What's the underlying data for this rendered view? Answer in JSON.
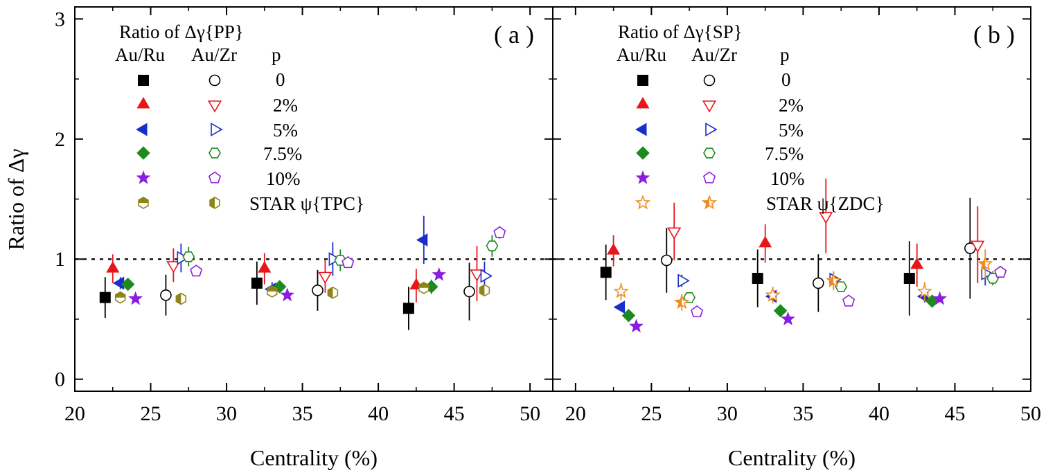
{
  "chart_data": [
    {
      "type": "scatter",
      "panel_label": "( a )",
      "legend_title": "Ratio of Δγ{PP}",
      "legend_headers": [
        "Au/Ru",
        "Au/Zr",
        "p"
      ],
      "legend_rows": [
        "0",
        "2%",
        "5%",
        "7.5%",
        "10%",
        "STAR ψ{TPC}"
      ],
      "xlabel": "Centrality (%)",
      "ylabel": "Ratio of Δγ",
      "xlim": [
        20,
        51.5
      ],
      "ylim": [
        -0.1,
        3.1
      ],
      "x_ticks": [
        "20",
        "25",
        "30",
        "35",
        "40",
        "45",
        "50"
      ],
      "y_ticks": [
        "0",
        "1",
        "2",
        "3"
      ],
      "reference_line": 1,
      "series": [
        {
          "name": "Au/Ru p=0",
          "marker": "square",
          "color": "#000000",
          "filled": true,
          "points": [
            {
              "x": 22,
              "y": 0.68,
              "err": 0.17
            },
            {
              "x": 32,
              "y": 0.8,
              "err": 0.18
            },
            {
              "x": 42,
              "y": 0.59,
              "err": 0.18
            }
          ]
        },
        {
          "name": "Au/Zr p=0",
          "marker": "circle",
          "color": "#000000",
          "filled": false,
          "points": [
            {
              "x": 26,
              "y": 0.7,
              "err": 0.17
            },
            {
              "x": 36,
              "y": 0.74,
              "err": 0.17
            },
            {
              "x": 46,
              "y": 0.73,
              "err": 0.24
            }
          ]
        },
        {
          "name": "Au/Ru p=2%",
          "marker": "triangle-up",
          "color": "#e8161b",
          "filled": true,
          "points": [
            {
              "x": 22.5,
              "y": 0.92,
              "err": 0.12
            },
            {
              "x": 32.5,
              "y": 0.92,
              "err": 0.13
            },
            {
              "x": 42.5,
              "y": 0.78,
              "err": 0.14
            }
          ]
        },
        {
          "name": "Au/Zr p=2%",
          "marker": "triangle-down",
          "color": "#e8161b",
          "filled": false,
          "points": [
            {
              "x": 26.5,
              "y": 0.95,
              "err": 0.14
            },
            {
              "x": 36.5,
              "y": 0.86,
              "err": 0.14
            },
            {
              "x": 46.5,
              "y": 0.88,
              "err": 0.23
            }
          ]
        },
        {
          "name": "Au/Ru p=5%",
          "marker": "triangle-left",
          "color": "#1a2fc9",
          "filled": true,
          "points": [
            {
              "x": 23,
              "y": 0.8,
              "err": 0.05
            },
            {
              "x": 33,
              "y": 0.75,
              "err": 0.06
            },
            {
              "x": 43,
              "y": 1.16,
              "err": 0.2
            }
          ]
        },
        {
          "name": "Au/Zr p=5%",
          "marker": "triangle-right",
          "color": "#1a2fc9",
          "filled": false,
          "points": [
            {
              "x": 27,
              "y": 1.01,
              "err": 0.12
            },
            {
              "x": 37,
              "y": 1.0,
              "err": 0.14
            },
            {
              "x": 47,
              "y": 0.86,
              "err": 0.12
            }
          ]
        },
        {
          "name": "Au/Ru p=7.5%",
          "marker": "diamond",
          "color": "#1d8a1d",
          "filled": true,
          "points": [
            {
              "x": 23.5,
              "y": 0.79,
              "err": 0.03
            },
            {
              "x": 33.5,
              "y": 0.77,
              "err": 0.04
            },
            {
              "x": 43.5,
              "y": 0.77,
              "err": 0.06
            }
          ]
        },
        {
          "name": "Au/Zr p=7.5%",
          "marker": "hexagon",
          "color": "#1d8a1d",
          "filled": false,
          "points": [
            {
              "x": 27.5,
              "y": 1.02,
              "err": 0.08
            },
            {
              "x": 37.5,
              "y": 0.99,
              "err": 0.09
            },
            {
              "x": 47.5,
              "y": 1.11,
              "err": 0.09
            }
          ]
        },
        {
          "name": "Au/Ru p=10%",
          "marker": "star",
          "color": "#8a1ee0",
          "filled": true,
          "points": [
            {
              "x": 24,
              "y": 0.67,
              "err": 0.02
            },
            {
              "x": 34,
              "y": 0.7,
              "err": 0.02
            },
            {
              "x": 44,
              "y": 0.87,
              "err": 0.03
            }
          ]
        },
        {
          "name": "Au/Zr p=10%",
          "marker": "pentagon",
          "color": "#8a1ee0",
          "filled": false,
          "points": [
            {
              "x": 28,
              "y": 0.9,
              "err": 0.03
            },
            {
              "x": 38,
              "y": 0.97,
              "err": 0.03
            },
            {
              "x": 48,
              "y": 1.22,
              "err": 0.05
            }
          ]
        },
        {
          "name": "STAR ψ{TPC} Au/Ru",
          "marker": "hexagon-half-top",
          "color": "#8f8418",
          "filled": true,
          "points": [
            {
              "x": 23,
              "y": 0.68,
              "err": 0.02
            },
            {
              "x": 33,
              "y": 0.73,
              "err": 0.02
            },
            {
              "x": 43,
              "y": 0.76,
              "err": 0.02
            }
          ]
        },
        {
          "name": "STAR ψ{TPC} Au/Zr",
          "marker": "hexagon-half-left",
          "color": "#8f8418",
          "filled": true,
          "points": [
            {
              "x": 27,
              "y": 0.67,
              "err": 0.02
            },
            {
              "x": 37,
              "y": 0.72,
              "err": 0.02
            },
            {
              "x": 47,
              "y": 0.74,
              "err": 0.02
            }
          ]
        }
      ]
    },
    {
      "type": "scatter",
      "panel_label": "( b )",
      "legend_title": "Ratio of Δγ{SP}",
      "legend_headers": [
        "Au/Ru",
        "Au/Zr",
        "p"
      ],
      "legend_rows": [
        "0",
        "2%",
        "5%",
        "7.5%",
        "10%",
        "STAR ψ{ZDC}"
      ],
      "xlabel": "Centrality (%)",
      "ylabel": "",
      "xlim": [
        18.5,
        50
      ],
      "ylim": [
        -0.1,
        3.1
      ],
      "x_ticks": [
        "20",
        "25",
        "30",
        "35",
        "40",
        "45",
        "50"
      ],
      "y_ticks": [
        "0",
        "1",
        "2",
        "3"
      ],
      "reference_line": 1,
      "series": [
        {
          "name": "Au/Ru p=0",
          "marker": "square",
          "color": "#000000",
          "filled": true,
          "points": [
            {
              "x": 22,
              "y": 0.89,
              "err": 0.23
            },
            {
              "x": 32,
              "y": 0.84,
              "err": 0.24
            },
            {
              "x": 42,
              "y": 0.84,
              "err": 0.31
            }
          ]
        },
        {
          "name": "Au/Zr p=0",
          "marker": "circle",
          "color": "#000000",
          "filled": false,
          "points": [
            {
              "x": 26,
              "y": 0.99,
              "err": 0.27
            },
            {
              "x": 36,
              "y": 0.8,
              "err": 0.24
            },
            {
              "x": 46,
              "y": 1.09,
              "err": 0.42
            }
          ]
        },
        {
          "name": "Au/Ru p=2%",
          "marker": "triangle-up",
          "color": "#e8161b",
          "filled": true,
          "points": [
            {
              "x": 22.5,
              "y": 1.07,
              "err": 0.13
            },
            {
              "x": 32.5,
              "y": 1.13,
              "err": 0.16
            },
            {
              "x": 42.5,
              "y": 0.95,
              "err": 0.18
            }
          ]
        },
        {
          "name": "Au/Zr p=2%",
          "marker": "triangle-down",
          "color": "#e8161b",
          "filled": false,
          "points": [
            {
              "x": 26.5,
              "y": 1.23,
              "err": 0.24
            },
            {
              "x": 36.5,
              "y": 1.36,
              "err": 0.31
            },
            {
              "x": 46.5,
              "y": 1.12,
              "err": 0.32
            }
          ]
        },
        {
          "name": "Au/Ru p=5%",
          "marker": "triangle-left",
          "color": "#1a2fc9",
          "filled": true,
          "points": [
            {
              "x": 23,
              "y": 0.6,
              "err": 0.03
            },
            {
              "x": 33,
              "y": 0.69,
              "err": 0.04
            },
            {
              "x": 43,
              "y": 0.69,
              "err": 0.05
            }
          ]
        },
        {
          "name": "Au/Zr p=5%",
          "marker": "triangle-right",
          "color": "#1a2fc9",
          "filled": false,
          "points": [
            {
              "x": 27,
              "y": 0.82,
              "err": 0.05
            },
            {
              "x": 37,
              "y": 0.83,
              "err": 0.06
            },
            {
              "x": 47,
              "y": 0.88,
              "err": 0.1
            }
          ]
        },
        {
          "name": "Au/Ru p=7.5%",
          "marker": "diamond",
          "color": "#1d8a1d",
          "filled": true,
          "points": [
            {
              "x": 23.5,
              "y": 0.53,
              "err": 0.02
            },
            {
              "x": 33.5,
              "y": 0.57,
              "err": 0.02
            },
            {
              "x": 43.5,
              "y": 0.65,
              "err": 0.03
            }
          ]
        },
        {
          "name": "Au/Zr p=7.5%",
          "marker": "hexagon",
          "color": "#1d8a1d",
          "filled": false,
          "points": [
            {
              "x": 27.5,
              "y": 0.68,
              "err": 0.03
            },
            {
              "x": 37.5,
              "y": 0.77,
              "err": 0.04
            },
            {
              "x": 47.5,
              "y": 0.84,
              "err": 0.06
            }
          ]
        },
        {
          "name": "Au/Ru p=10%",
          "marker": "star",
          "color": "#8a1ee0",
          "filled": true,
          "points": [
            {
              "x": 24,
              "y": 0.44,
              "err": 0.02
            },
            {
              "x": 34,
              "y": 0.5,
              "err": 0.02
            },
            {
              "x": 44,
              "y": 0.67,
              "err": 0.02
            }
          ]
        },
        {
          "name": "Au/Zr p=10%",
          "marker": "pentagon",
          "color": "#8a1ee0",
          "filled": false,
          "points": [
            {
              "x": 28,
              "y": 0.56,
              "err": 0.02
            },
            {
              "x": 38,
              "y": 0.65,
              "err": 0.02
            },
            {
              "x": 48,
              "y": 0.89,
              "err": 0.03
            }
          ]
        },
        {
          "name": "STAR ψ{ZDC} Au/Ru",
          "marker": "star-open",
          "color": "#f08c1e",
          "filled": false,
          "points": [
            {
              "x": 23,
              "y": 0.73,
              "err": 0.07
            },
            {
              "x": 33,
              "y": 0.7,
              "err": 0.07
            },
            {
              "x": 43,
              "y": 0.73,
              "err": 0.08
            }
          ]
        },
        {
          "name": "STAR ψ{ZDC} Au/Zr",
          "marker": "star-half",
          "color": "#f08c1e",
          "filled": true,
          "points": [
            {
              "x": 27,
              "y": 0.64,
              "err": 0.07
            },
            {
              "x": 37,
              "y": 0.82,
              "err": 0.08
            },
            {
              "x": 47,
              "y": 0.96,
              "err": 0.12
            }
          ]
        }
      ]
    }
  ]
}
